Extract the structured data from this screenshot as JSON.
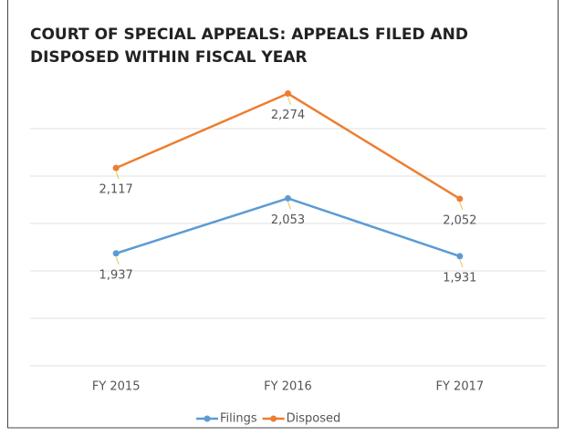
{
  "chart_data": {
    "type": "line",
    "title": "COURT OF SPECIAL APPEALS: APPEALS FILED AND DISPOSED WITHIN FISCAL YEAR",
    "categories": [
      "FY 2015",
      "FY 2016",
      "FY 2017"
    ],
    "series": [
      {
        "name": "Filings",
        "color": "#5b9bd5",
        "values": [
          1937,
          2053,
          1931
        ],
        "value_labels": [
          "1,937",
          "2,053",
          "1,931"
        ]
      },
      {
        "name": "Disposed",
        "color": "#ed7d31",
        "values": [
          2117,
          2274,
          2052
        ],
        "value_labels": [
          "2,117",
          "2,274",
          "2,052"
        ]
      }
    ],
    "ylim": [
      1700,
      2300
    ],
    "yticks": [
      1700,
      1800,
      1900,
      2000,
      2100,
      2200
    ],
    "grid": true,
    "legend": "bottom"
  }
}
